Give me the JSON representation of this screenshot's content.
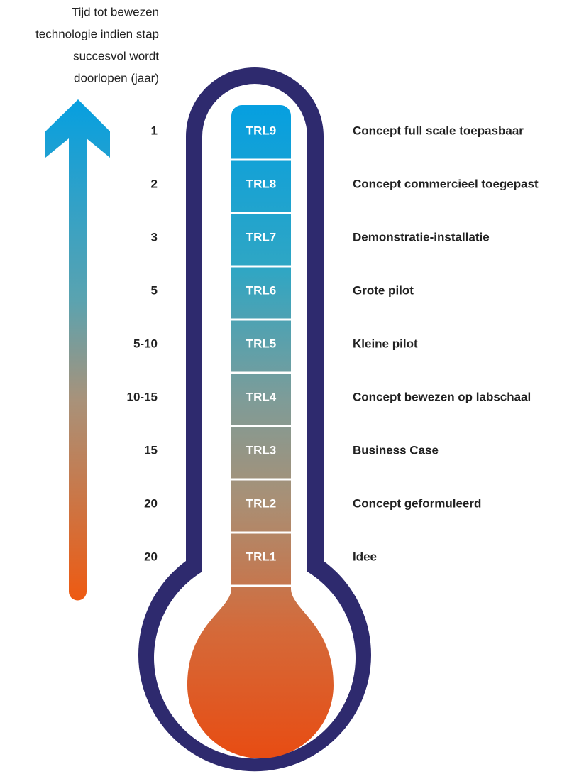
{
  "axis_label": [
    "Tijd tot bewezen",
    "technologie indien stap",
    "succesvol wordt",
    "doorlopen (jaar)"
  ],
  "levels": [
    {
      "time": "1",
      "trl": "TRL9",
      "description": "Concept full scale toepasbaar"
    },
    {
      "time": "2",
      "trl": "TRL8",
      "description": "Concept commercieel toegepast"
    },
    {
      "time": "3",
      "trl": "TRL7",
      "description": "Demonstratie-installatie"
    },
    {
      "time": "5",
      "trl": "TRL6",
      "description": "Grote pilot"
    },
    {
      "time": "5-10",
      "trl": "TRL5",
      "description": "Kleine pilot"
    },
    {
      "time": "10-15",
      "trl": "TRL4",
      "description": "Concept bewezen op labschaal"
    },
    {
      "time": "15",
      "trl": "TRL3",
      "description": "Business Case"
    },
    {
      "time": "20",
      "trl": "TRL2",
      "description": "Concept geformuleerd"
    },
    {
      "time": "20",
      "trl": "TRL1",
      "description": "Idee"
    }
  ]
}
